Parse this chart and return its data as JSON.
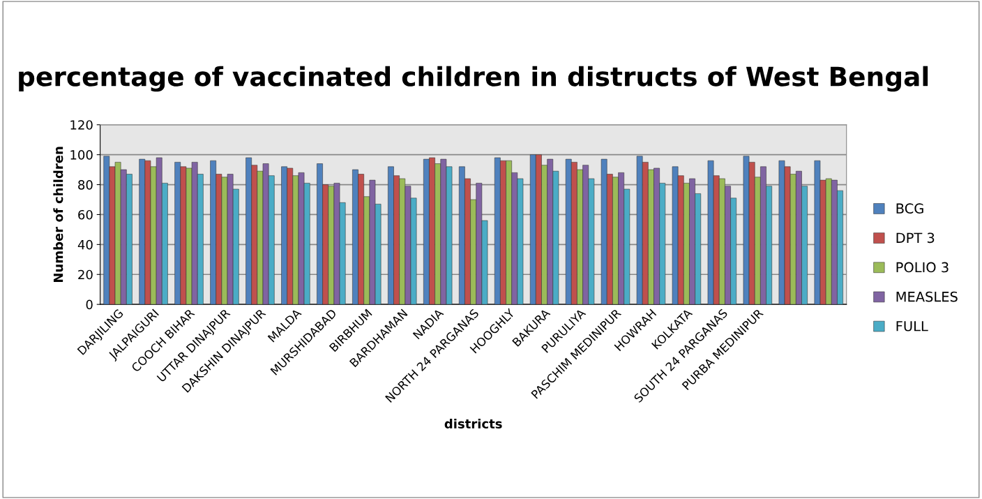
{
  "chart_data": {
    "type": "bar",
    "title": "percentage of vaccinated children in distructs of West Bengal",
    "xlabel": "districts",
    "ylabel": "Number of children",
    "categories": [
      "DARJILING",
      "JALPAIGURI",
      "COOCH BIHAR",
      "UTTAR DINAJPUR",
      "DAKSHIN DINAJPUR",
      "MALDA",
      "MURSHIDABAD",
      "BIRBHUM",
      "BARDHAMAN",
      "NADIA",
      "NORTH 24 PARGANAS",
      "HOOGHLY",
      "BAKURA",
      "PURULIYA",
      "PASCHIM MEDINIPUR",
      "HOWRAH",
      "KOLKATA",
      "SOUTH 24 PARGANAS",
      "PURBA MEDINIPUR",
      null,
      null
    ],
    "series": [
      {
        "name": "BCG",
        "color": "#4f81bd",
        "values": [
          99,
          97,
          95,
          96,
          98,
          92,
          94,
          90,
          92,
          97,
          92,
          98,
          100,
          97,
          97,
          99,
          92,
          96,
          99,
          96,
          96
        ]
      },
      {
        "name": "DPT 3",
        "color": "#c0504d",
        "values": [
          92,
          96,
          92,
          87,
          93,
          91,
          80,
          87,
          86,
          98,
          84,
          96,
          100,
          95,
          87,
          95,
          86,
          86,
          95,
          92,
          83
        ]
      },
      {
        "name": "POLIO 3",
        "color": "#9bbb59",
        "values": [
          95,
          92,
          91,
          85,
          89,
          86,
          79,
          72,
          84,
          94,
          70,
          96,
          93,
          90,
          85,
          90,
          81,
          84,
          85,
          87,
          84
        ]
      },
      {
        "name": "MEASLES",
        "color": "#8064a2",
        "values": [
          90,
          98,
          95,
          87,
          94,
          88,
          81,
          83,
          79,
          97,
          81,
          88,
          97,
          93,
          88,
          91,
          84,
          79,
          92,
          89,
          83
        ]
      },
      {
        "name": "FULL",
        "color": "#4bacc6",
        "values": [
          87,
          81,
          87,
          77,
          86,
          81,
          68,
          67,
          71,
          92,
          56,
          84,
          89,
          84,
          77,
          81,
          74,
          71,
          79,
          79,
          76
        ]
      }
    ],
    "ylim": [
      0,
      120
    ],
    "yticks": [
      0,
      20,
      40,
      60,
      80,
      100,
      120
    ],
    "grid": "y",
    "legend": "right"
  }
}
